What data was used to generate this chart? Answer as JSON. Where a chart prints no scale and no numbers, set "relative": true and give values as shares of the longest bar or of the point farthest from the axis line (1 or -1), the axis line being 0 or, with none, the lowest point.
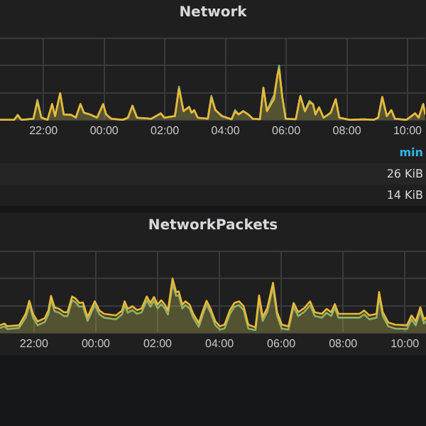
{
  "chart_data": [
    {
      "type": "area",
      "title": "Network",
      "relative": true,
      "grid": true,
      "xlim": [
        "--01-01T20:34",
        "--01-02T10:35"
      ],
      "xticks": [
        {
          "value": "--01-01T22:00",
          "label": "22:00"
        },
        {
          "value": "--01-02T00:00",
          "label": "00:00"
        },
        {
          "value": "--01-02T02:00",
          "label": "02:00"
        },
        {
          "value": "--01-02T04:00",
          "label": "04:00"
        },
        {
          "value": "--01-02T06:00",
          "label": "06:00"
        },
        {
          "value": "--01-02T08:00",
          "label": "08:00"
        },
        {
          "value": "--01-02T10:00",
          "label": "10:00"
        }
      ],
      "x": [
        "--01-01T20:34",
        "--01-01T21:02",
        "--01-01T21:09",
        "--01-01T21:16",
        "--01-01T21:40",
        "--01-01T21:48",
        "--01-01T21:56",
        "--01-01T22:08",
        "--01-01T22:17",
        "--01-01T22:23",
        "--01-01T22:33",
        "--01-01T22:40",
        "--01-01T22:55",
        "--01-01T23:04",
        "--01-01T23:13",
        "--01-01T23:20",
        "--01-01T23:32",
        "--01-01T23:46",
        "--01-01T23:58",
        "--01-02T00:04",
        "--01-02T00:14",
        "--01-02T00:37",
        "--01-02T00:47",
        "--01-02T00:56",
        "--01-02T01:05",
        "--01-02T01:33",
        "--01-02T01:52",
        "--01-02T01:59",
        "--01-02T02:20",
        "--01-02T02:28",
        "--01-02T02:37",
        "--01-02T02:48",
        "--01-02T02:53",
        "--01-02T02:58",
        "--01-02T03:05",
        "--01-02T03:25",
        "--01-02T03:32",
        "--01-02T03:40",
        "--01-02T03:53",
        "--01-02T04:12",
        "--01-02T04:19",
        "--01-02T04:26",
        "--01-02T04:35",
        "--01-02T04:45",
        "--01-02T04:54",
        "--01-02T05:08",
        "--01-02T05:15",
        "--01-02T05:22",
        "--01-02T05:32",
        "--01-02T05:36",
        "--01-02T05:43",
        "--01-02T05:46",
        "--01-02T05:52",
        "--01-02T05:59",
        "--01-02T06:19",
        "--01-02T06:28",
        "--01-02T06:37",
        "--01-02T06:46",
        "--01-02T06:53",
        "--01-02T06:58",
        "--01-02T07:05",
        "--01-02T07:14",
        "--01-02T07:28",
        "--01-02T07:38",
        "--01-02T07:45",
        "--01-02T08:06",
        "--01-02T08:34",
        "--01-02T08:53",
        "--01-02T09:02",
        "--01-02T09:10",
        "--01-02T09:19",
        "--01-02T09:28",
        "--01-02T09:35",
        "--01-02T09:58",
        "--01-02T10:15",
        "--01-02T10:22",
        "--01-02T10:31",
        "--01-02T10:35"
      ],
      "series": [
        {
          "color": "#eab839",
          "values": [
            0,
            0,
            0.09,
            0,
            0.02,
            0.33,
            0.04,
            0,
            0.29,
            0.07,
            0.49,
            0.1,
            0.09,
            0.04,
            0.29,
            0.13,
            0.1,
            0.04,
            0.29,
            0.1,
            0.02,
            0,
            0.04,
            0.26,
            0.04,
            0.02,
            0.12,
            0.04,
            0.07,
            0.57,
            0.16,
            0.24,
            0.13,
            0.18,
            0.04,
            0.02,
            0.41,
            0.18,
            0.07,
            0.01,
            0.15,
            0.1,
            0.16,
            0.1,
            0.02,
            0.01,
            0.59,
            0.16,
            0.32,
            0.38,
            0.84,
            0.93,
            0.44,
            0.02,
            0.01,
            0.44,
            0.16,
            0.32,
            0.29,
            0.1,
            0.23,
            0.04,
            0.13,
            0.38,
            0.04,
            0,
            0.01,
            0,
            0.04,
            0.42,
            0.07,
            0.18,
            0.02,
            0,
            0.12,
            0.04,
            0.29,
            0.1
          ]
        },
        {
          "color": "#7eb26d",
          "values": [
            0,
            0,
            0.09,
            0,
            0.02,
            0.37,
            0.04,
            0,
            0.29,
            0.07,
            0.49,
            0.1,
            0.09,
            0.04,
            0.29,
            0.13,
            0.1,
            0.04,
            0.29,
            0.1,
            0.02,
            0,
            0.04,
            0.26,
            0.04,
            0.02,
            0.12,
            0.04,
            0.07,
            0.61,
            0.16,
            0.24,
            0.13,
            0.18,
            0.04,
            0.02,
            0.44,
            0.18,
            0.07,
            0.01,
            0.18,
            0.1,
            0.16,
            0.1,
            0.02,
            0.01,
            0.59,
            0.16,
            0.38,
            0.45,
            0.84,
            1,
            0.44,
            0.02,
            0.01,
            0.44,
            0.16,
            0.35,
            0.29,
            0.1,
            0.23,
            0.04,
            0.13,
            0.38,
            0.04,
            0,
            0.01,
            0,
            0.04,
            0.42,
            0.07,
            0.18,
            0.02,
            0,
            0.12,
            0.04,
            0.29,
            0.1
          ]
        }
      ],
      "annotations": [
        "min",
        "26 KiB",
        "14 KiB"
      ]
    },
    {
      "type": "area",
      "title": "NetworkPackets",
      "relative": true,
      "grid": true,
      "xlim": [
        "--01-01T20:54",
        "--01-02T10:41"
      ],
      "xticks": [
        {
          "value": "--01-01T22:00",
          "label": "22:00"
        },
        {
          "value": "--01-02T00:00",
          "label": "00:00"
        },
        {
          "value": "--01-02T02:00",
          "label": "02:00"
        },
        {
          "value": "--01-02T04:00",
          "label": "04:00"
        },
        {
          "value": "--01-02T06:00",
          "label": "06:00"
        },
        {
          "value": "--01-02T08:00",
          "label": "08:00"
        },
        {
          "value": "--01-02T10:00",
          "label": "10:00"
        }
      ],
      "x": [
        "--01-01T20:54",
        "--01-01T21:03",
        "--01-01T21:08",
        "--01-01T21:31",
        "--01-01T21:44",
        "--01-01T21:51",
        "--01-01T21:58",
        "--01-01T22:07",
        "--01-01T22:21",
        "--01-01T22:28",
        "--01-01T22:33",
        "--01-01T22:40",
        "--01-01T22:49",
        "--01-01T22:58",
        "--01-01T23:05",
        "--01-01T23:14",
        "--01-01T23:21",
        "--01-01T23:28",
        "--01-01T23:35",
        "--01-01T23:44",
        "--01-01T23:58",
        "--01-02T00:07",
        "--01-02T00:16",
        "--01-02T00:39",
        "--01-02T00:51",
        "--01-02T00:56",
        "--01-02T01:02",
        "--01-02T01:11",
        "--01-02T01:20",
        "--01-02T01:29",
        "--01-02T01:39",
        "--01-02T01:46",
        "--01-02T01:53",
        "--01-02T02:00",
        "--01-02T02:07",
        "--01-02T02:14",
        "--01-02T02:20",
        "--01-02T02:29",
        "--01-02T02:36",
        "--01-02T02:41",
        "--01-02T02:48",
        "--01-02T02:54",
        "--01-02T03:02",
        "--01-02T03:09",
        "--01-02T03:20",
        "--01-02T03:29",
        "--01-02T03:35",
        "--01-02T03:43",
        "--01-02T03:52",
        "--01-02T04:01",
        "--01-02T04:10",
        "--01-02T04:20",
        "--01-02T04:29",
        "--01-02T04:38",
        "--01-02T04:47",
        "--01-02T04:56",
        "--01-02T05:10",
        "--01-02T05:17",
        "--01-02T05:24",
        "--01-02T05:33",
        "--01-02T05:44",
        "--01-02T05:52",
        "--01-02T06:01",
        "--01-02T06:14",
        "--01-02T06:24",
        "--01-02T06:33",
        "--01-02T06:45",
        "--01-02T06:56",
        "--01-02T07:05",
        "--01-02T07:19",
        "--01-02T07:28",
        "--01-02T07:37",
        "--01-02T07:44",
        "--01-02T07:51",
        "--01-02T07:56",
        "--01-02T08:32",
        "--01-02T08:41",
        "--01-02T08:51",
        "--01-02T09:05",
        "--01-02T09:10",
        "--01-02T09:17",
        "--01-02T09:28",
        "--01-02T09:41",
        "--01-02T10:04",
        "--01-02T10:13",
        "--01-02T10:21",
        "--01-02T10:30",
        "--01-02T10:37",
        "--01-02T10:41"
      ],
      "series": [
        {
          "color": "#eab839",
          "values": [
            0.14,
            0.17,
            0.12,
            0.14,
            0.35,
            0.59,
            0.35,
            0.21,
            0.27,
            0.41,
            0.68,
            0.47,
            0.44,
            0.38,
            0.38,
            0.67,
            0.63,
            0.55,
            0.56,
            0.29,
            0.58,
            0.41,
            0.35,
            0.32,
            0.41,
            0.58,
            0.44,
            0.49,
            0.42,
            0.45,
            0.67,
            0.55,
            0.66,
            0.52,
            0.6,
            0.52,
            0.41,
            1,
            0.75,
            0.76,
            0.52,
            0.58,
            0.52,
            0.35,
            0.18,
            0.44,
            0.59,
            0.44,
            0.21,
            0.12,
            0.15,
            0.41,
            0.55,
            0.58,
            0.49,
            0.15,
            0.1,
            0.69,
            0.29,
            0.46,
            0.92,
            0.38,
            0.15,
            0.12,
            0.55,
            0.38,
            0.46,
            0.58,
            0.38,
            0.35,
            0.44,
            0.38,
            0.53,
            0.35,
            0.35,
            0.35,
            0.41,
            0.32,
            0.35,
            0.75,
            0.38,
            0.19,
            0.15,
            0.14,
            0.32,
            0.21,
            0.47,
            0.24,
            0.29
          ]
        },
        {
          "color": "#7eb26d",
          "values": [
            0.09,
            0.12,
            0.07,
            0.09,
            0.28,
            0.52,
            0.28,
            0.14,
            0.2,
            0.34,
            0.61,
            0.4,
            0.37,
            0.31,
            0.31,
            0.6,
            0.56,
            0.48,
            0.49,
            0.22,
            0.51,
            0.34,
            0.28,
            0.25,
            0.34,
            0.51,
            0.37,
            0.42,
            0.35,
            0.38,
            0.6,
            0.48,
            0.59,
            0.45,
            0.53,
            0.45,
            0.34,
            0.9,
            0.68,
            0.69,
            0.45,
            0.51,
            0.45,
            0.28,
            0.11,
            0.37,
            0.52,
            0.37,
            0.14,
            0.06,
            0.08,
            0.34,
            0.48,
            0.51,
            0.42,
            0.08,
            0.05,
            0.62,
            0.22,
            0.39,
            0.85,
            0.31,
            0.08,
            0.06,
            0.48,
            0.31,
            0.39,
            0.51,
            0.31,
            0.28,
            0.37,
            0.31,
            0.46,
            0.28,
            0.28,
            0.28,
            0.34,
            0.25,
            0.28,
            0.68,
            0.31,
            0.12,
            0.08,
            0.07,
            0.25,
            0.14,
            0.4,
            0.17,
            0.22
          ]
        }
      ]
    }
  ]
}
